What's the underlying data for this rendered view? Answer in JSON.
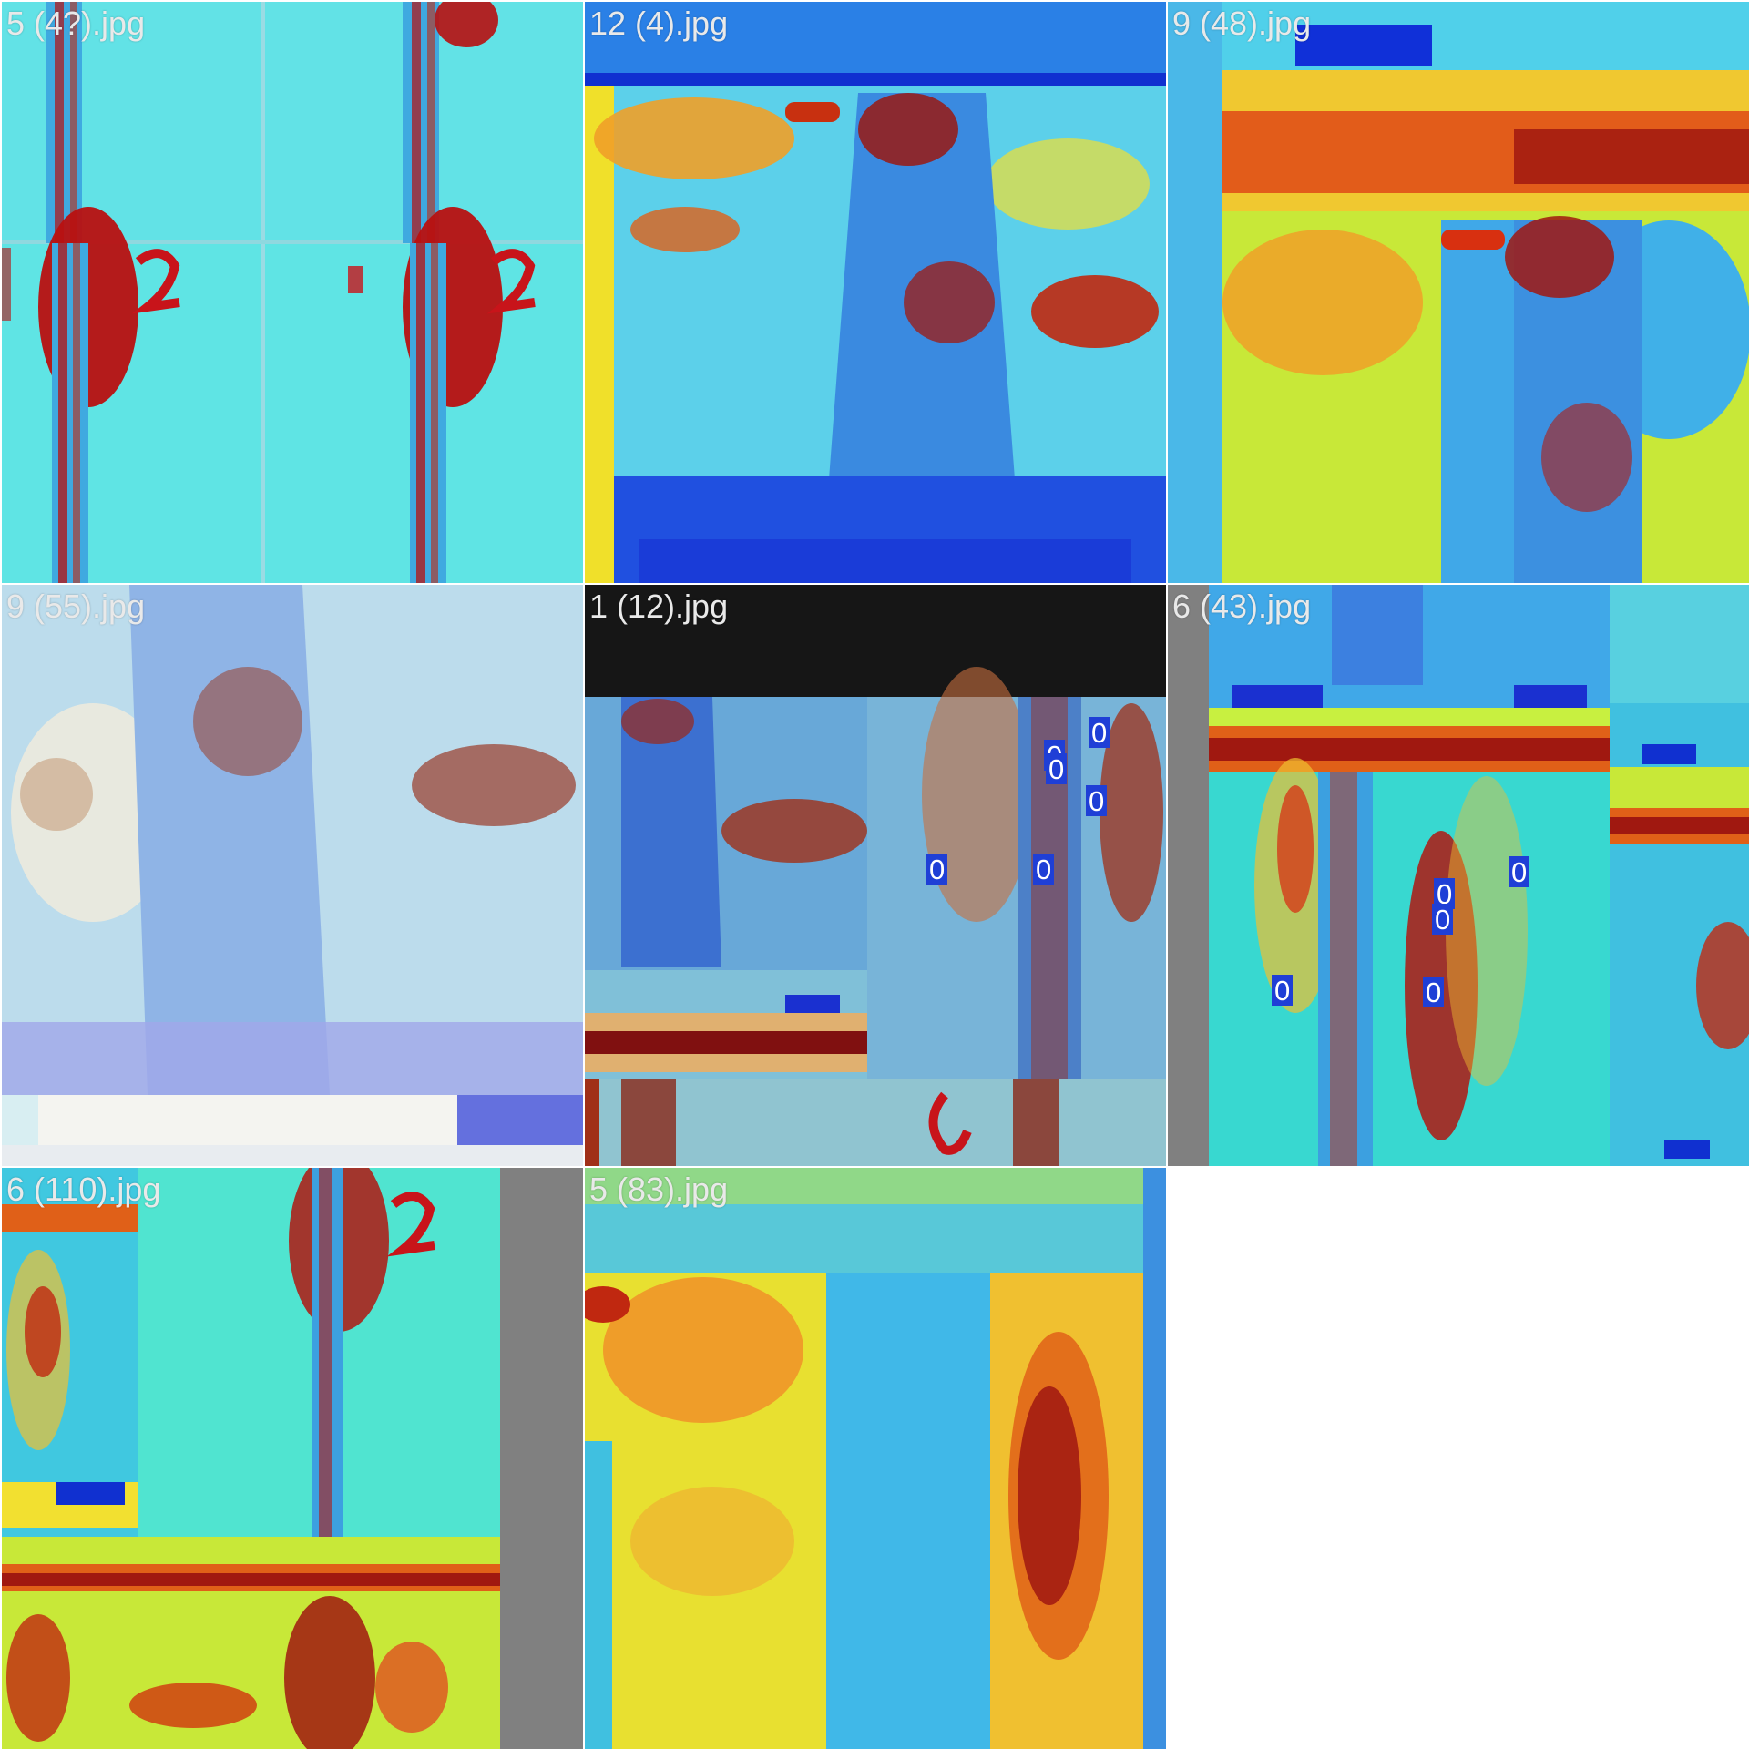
{
  "grid": {
    "tiles": [
      {
        "name": "5 (4?).jpg"
      },
      {
        "name": "12 (4).jpg"
      },
      {
        "name": "9 (48).jpg"
      },
      {
        "name": "9 (55).jpg"
      },
      {
        "name": "1 (12).jpg"
      },
      {
        "name": "6 (43).jpg"
      },
      {
        "name": "6 (110).jpg"
      },
      {
        "name": "5 (83).jpg"
      }
    ]
  },
  "detections": {
    "label": "0",
    "tile_1_12_count": 6,
    "tile_6_43_count": 5
  },
  "colors": {
    "cyan": "#40e0e8",
    "blue": "#1f3fd6",
    "red": "#b81010",
    "yellow": "#f2e020",
    "orange": "#f0801c",
    "letterbox": "#161616",
    "pad_gray": "#808080"
  }
}
